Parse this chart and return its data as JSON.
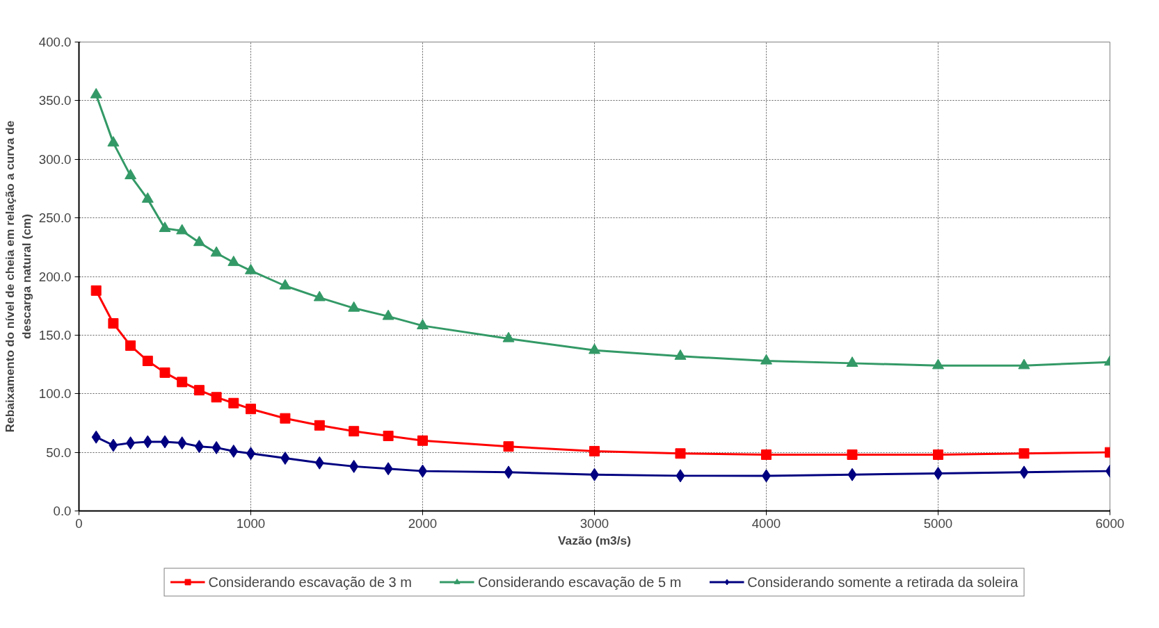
{
  "chart_data": {
    "type": "line",
    "xlabel": "Vazão (m3/s)",
    "ylabel": "Rebaixamento do nível de cheia em relação a curva de\ndescarga natural (cm)",
    "x": [
      100,
      200,
      300,
      400,
      500,
      600,
      700,
      800,
      900,
      1000,
      1200,
      1400,
      1600,
      1800,
      2000,
      2500,
      3000,
      3500,
      4000,
      4500,
      5000,
      5500,
      6000
    ],
    "series": [
      {
        "name": "Considerando escavação de 3 m",
        "color": "#ff0000",
        "marker": "square",
        "values": [
          188,
          160,
          141,
          128,
          118,
          110,
          103,
          97,
          92,
          87,
          79,
          73,
          68,
          64,
          60,
          55,
          51,
          49,
          48,
          48,
          48,
          49,
          50
        ]
      },
      {
        "name": "Considerando escavação de 5 m",
        "color": "#339966",
        "marker": "triangle",
        "values": [
          355,
          314,
          286,
          266,
          241,
          239,
          229,
          220,
          212,
          205,
          192,
          182,
          173,
          166,
          158,
          147,
          137,
          132,
          128,
          126,
          124,
          124,
          127
        ]
      },
      {
        "name": "Considerando somente a retirada da soleira",
        "color": "#000080",
        "marker": "diamond",
        "values": [
          63,
          56,
          58,
          59,
          59,
          58,
          55,
          54,
          51,
          49,
          45,
          41,
          38,
          36,
          34,
          33,
          31,
          30,
          30,
          31,
          32,
          33,
          34
        ]
      }
    ],
    "xlim": [
      0,
      6000
    ],
    "xticks": [
      0,
      1000,
      2000,
      3000,
      4000,
      5000,
      6000
    ],
    "ylim": [
      0,
      400
    ],
    "yticks": [
      {
        "value": 0,
        "label": "0.0"
      },
      {
        "value": 50,
        "label": "50.0"
      },
      {
        "value": 100,
        "label": "100.0"
      },
      {
        "value": 150,
        "label": "150.0"
      },
      {
        "value": 200,
        "label": "200.0"
      },
      {
        "value": 250,
        "label": "250.0"
      },
      {
        "value": 300,
        "label": "300.0"
      },
      {
        "value": 350,
        "label": "350.0"
      },
      {
        "value": 400,
        "label": "400.0"
      }
    ],
    "grid": true,
    "legend": "bottom",
    "line_style": "solid"
  }
}
